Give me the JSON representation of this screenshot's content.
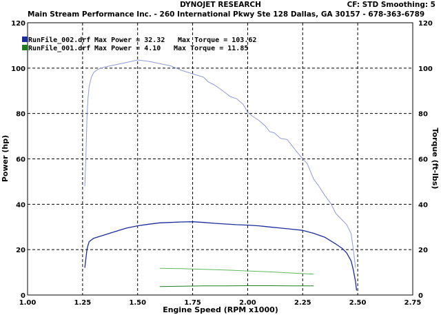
{
  "header": {
    "title": "DYNOJET RESEARCH",
    "settings": "CF: STD  Smoothing: 5",
    "shop_info": "Main Stream Performance Inc. - 260 International Pkwy Ste 128  Dallas, GA  30157 - 678-363-6789"
  },
  "colors": {
    "run002_power": "#1a2b9c",
    "run002_torque": "#8f99dc",
    "run001_power": "#1e7d1e",
    "run001_torque": "#5fb85f",
    "grid": "#000000"
  },
  "chart_data": {
    "type": "line",
    "xlabel": "Engine Speed (RPM x1000)",
    "ylabel": "Power (hp)",
    "y2label": "Torque (ft-lbs)",
    "xlim": [
      1.0,
      2.75
    ],
    "ylim": [
      0,
      120
    ],
    "xticks": [
      "1.00",
      "1.25",
      "1.50",
      "1.75",
      "2.00",
      "2.25",
      "2.50",
      "2.75"
    ],
    "yticks": [
      "0",
      "20",
      "40",
      "60",
      "80",
      "100",
      "120"
    ],
    "y2ticks": [
      "0",
      "20",
      "40",
      "60",
      "80",
      "100",
      "120"
    ],
    "grid": true,
    "legend_position": "top-left",
    "legend": [
      {
        "file": "RunFile_002.drf",
        "power_label": "Max Power = 32.32",
        "torque_label": "Max Torque = 103.62",
        "color": "#1a2b9c"
      },
      {
        "file": "RunFile_001.drf",
        "power_label": "Max Power = 4.10",
        "torque_label": "Max Torque = 11.85",
        "color": "#1e7d1e"
      }
    ],
    "series": [
      {
        "axis": "torque",
        "color": "#8f99dc",
        "x": [
          1.26,
          1.265,
          1.27,
          1.275,
          1.28,
          1.29,
          1.3,
          1.32,
          1.35,
          1.4,
          1.45,
          1.5,
          1.55,
          1.6,
          1.65,
          1.7,
          1.75,
          1.8,
          1.82,
          1.85,
          1.88,
          1.9,
          1.92,
          1.95,
          1.98,
          2.0,
          2.02,
          2.05,
          2.08,
          2.1,
          2.12,
          2.15,
          2.18,
          2.2,
          2.22,
          2.25,
          2.27,
          2.3,
          2.32,
          2.35,
          2.38,
          2.4,
          2.42,
          2.45,
          2.47,
          2.48,
          2.49
        ],
        "y": [
          48,
          60,
          78,
          87,
          92,
          96,
          98,
          99.5,
          100.5,
          101.5,
          102.5,
          103.6,
          103,
          102,
          101,
          99,
          97.5,
          96,
          94,
          92.5,
          90.5,
          89,
          87.5,
          86.5,
          84,
          80.5,
          79,
          77,
          74.5,
          72,
          71.5,
          69,
          68.5,
          66,
          63.5,
          60,
          58,
          51,
          48.5,
          44,
          40,
          36,
          34,
          31,
          27,
          20,
          12
        ]
      },
      {
        "axis": "power",
        "color": "#1a2b9c",
        "x": [
          1.26,
          1.265,
          1.27,
          1.275,
          1.28,
          1.3,
          1.35,
          1.4,
          1.45,
          1.5,
          1.55,
          1.6,
          1.65,
          1.7,
          1.75,
          1.8,
          1.85,
          1.9,
          1.95,
          2.0,
          2.05,
          2.1,
          2.15,
          2.2,
          2.25,
          2.3,
          2.35,
          2.4,
          2.43,
          2.45,
          2.47,
          2.48,
          2.49,
          2.495
        ],
        "y": [
          12,
          16,
          20,
          22,
          23.5,
          25,
          26.5,
          28,
          29.5,
          30.5,
          31.2,
          31.8,
          32,
          32.2,
          32.3,
          32,
          31.6,
          31.3,
          31,
          30.8,
          30.5,
          30,
          29.5,
          29,
          28.5,
          27.2,
          25.5,
          22.5,
          20.5,
          18.5,
          15,
          11,
          6,
          2
        ]
      },
      {
        "axis": "torque",
        "color": "#5fb85f",
        "x": [
          1.6,
          1.7,
          1.8,
          1.9,
          2.0,
          2.1,
          2.2,
          2.3
        ],
        "y": [
          11.8,
          11.6,
          11.3,
          11.0,
          10.6,
          10.2,
          9.7,
          9.2
        ]
      },
      {
        "axis": "power",
        "color": "#1e7d1e",
        "x": [
          1.6,
          1.7,
          1.8,
          1.9,
          2.0,
          2.1,
          2.2,
          2.3
        ],
        "y": [
          3.7,
          3.9,
          4.0,
          4.05,
          4.1,
          4.1,
          4.05,
          4.0
        ]
      }
    ]
  }
}
